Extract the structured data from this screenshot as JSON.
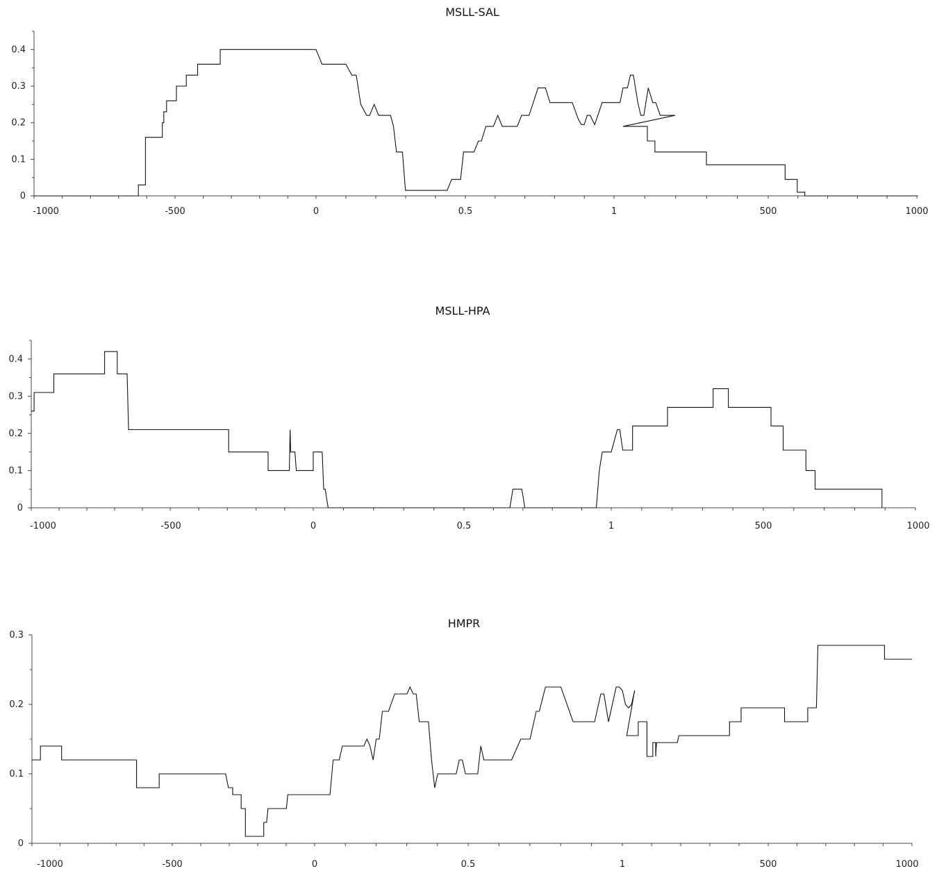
{
  "chart_data": [
    {
      "type": "line",
      "title": "MSLL-SAL",
      "xlabel": "",
      "ylabel": "",
      "ylim": [
        0,
        0.45
      ],
      "yticks": [
        "0",
        "0.1",
        "0.2",
        "0.3",
        "0.4"
      ],
      "xtick_labels": [
        "-1000",
        "-500",
        "0",
        "0.5",
        "1",
        "500",
        "1000"
      ],
      "grid": false,
      "series": [
        {
          "values": [
            [
              -1000,
              0
            ],
            [
              -630,
              0
            ],
            [
              -630,
              0.03
            ],
            [
              -605,
              0.03
            ],
            [
              -605,
              0.16
            ],
            [
              -545,
              0.16
            ],
            [
              -545,
              0.2
            ],
            [
              -540,
              0.2
            ],
            [
              -540,
              0.23
            ],
            [
              -530,
              0.23
            ],
            [
              -530,
              0.26
            ],
            [
              -495,
              0.26
            ],
            [
              -495,
              0.3
            ],
            [
              -460,
              0.3
            ],
            [
              -460,
              0.33
            ],
            [
              -420,
              0.33
            ],
            [
              -420,
              0.36
            ],
            [
              -340,
              0.36
            ],
            [
              -340,
              0.4
            ],
            [
              0,
              0.4
            ],
            [
              0,
              0.4
            ],
            [
              0.02,
              0.36
            ],
            [
              0.1,
              0.36
            ],
            [
              0.12,
              0.33
            ],
            [
              0.135,
              0.33
            ],
            [
              0.15,
              0.25
            ],
            [
              0.17,
              0.22
            ],
            [
              0.18,
              0.22
            ],
            [
              0.195,
              0.25
            ],
            [
              0.21,
              0.22
            ],
            [
              0.25,
              0.22
            ],
            [
              0.26,
              0.19
            ],
            [
              0.27,
              0.12
            ],
            [
              0.29,
              0.12
            ],
            [
              0.3,
              0.015
            ],
            [
              0.44,
              0.015
            ],
            [
              0.455,
              0.045
            ],
            [
              0.485,
              0.045
            ],
            [
              0.495,
              0.12
            ],
            [
              0.53,
              0.12
            ],
            [
              0.545,
              0.15
            ],
            [
              0.555,
              0.15
            ],
            [
              0.57,
              0.19
            ],
            [
              0.595,
              0.19
            ],
            [
              0.61,
              0.22
            ],
            [
              0.625,
              0.19
            ],
            [
              0.675,
              0.19
            ],
            [
              0.69,
              0.22
            ],
            [
              0.715,
              0.22
            ],
            [
              0.745,
              0.295
            ],
            [
              0.77,
              0.295
            ],
            [
              0.785,
              0.255
            ],
            [
              0.86,
              0.255
            ],
            [
              0.88,
              0.21
            ],
            [
              0.89,
              0.195
            ],
            [
              0.9,
              0.195
            ],
            [
              0.91,
              0.22
            ],
            [
              0.92,
              0.22
            ],
            [
              0.935,
              0.195
            ],
            [
              0.95,
              0.23
            ],
            [
              0.96,
              0.255
            ],
            [
              1.0,
              0.255
            ],
            [
              1.02,
              0.255
            ],
            [
              1.03,
              0.295
            ],
            [
              1.045,
              0.295
            ],
            [
              1.055,
              0.33
            ],
            [
              1.065,
              0.33
            ],
            [
              1.08,
              0.255
            ],
            [
              1.09,
              0.22
            ],
            [
              1.1,
              0.22
            ],
            [
              1.115,
              0.295
            ],
            [
              1.13,
              0.255
            ],
            [
              1.14,
              0.255
            ],
            [
              1.155,
              0.22
            ],
            [
              1.205,
              0.22
            ],
            [
              30,
              0.19
            ],
            [
              110,
              0.19
            ],
            [
              110,
              0.15
            ],
            [
              135,
              0.15
            ],
            [
              135,
              0.12
            ],
            [
              305,
              0.12
            ],
            [
              305,
              0.085
            ],
            [
              565,
              0.085
            ],
            [
              565,
              0.045
            ],
            [
              605,
              0.045
            ],
            [
              605,
              0.01
            ],
            [
              630,
              0.01
            ],
            [
              630,
              0
            ],
            [
              1000,
              0
            ]
          ]
        }
      ]
    },
    {
      "type": "line",
      "title": "MSLL-HPA",
      "xlabel": "",
      "ylabel": "",
      "ylim": [
        0,
        0.45
      ],
      "yticks": [
        "0",
        "0.1",
        "0.2",
        "0.3",
        "0.4"
      ],
      "xtick_labels": [
        "-1000",
        "-500",
        "0",
        "0.5",
        "1",
        "500",
        "1000"
      ],
      "grid": false,
      "series": [
        {
          "values": [
            [
              -1000,
              0.26
            ],
            [
              -990,
              0.26
            ],
            [
              -990,
              0.31
            ],
            [
              -920,
              0.31
            ],
            [
              -920,
              0.36
            ],
            [
              -740,
              0.36
            ],
            [
              -740,
              0.42
            ],
            [
              -695,
              0.42
            ],
            [
              -695,
              0.36
            ],
            [
              -660,
              0.36
            ],
            [
              -655,
              0.21
            ],
            [
              -300,
              0.21
            ],
            [
              -300,
              0.15
            ],
            [
              -160,
              0.15
            ],
            [
              -160,
              0.1
            ],
            [
              -85,
              0.1
            ],
            [
              -82,
              0.21
            ],
            [
              -80,
              0.15
            ],
            [
              -65,
              0.15
            ],
            [
              -60,
              0.1
            ],
            [
              0,
              0.1
            ],
            [
              0,
              0.15
            ],
            [
              0.03,
              0.15
            ],
            [
              0.035,
              0.05
            ],
            [
              0.04,
              0.05
            ],
            [
              0.05,
              0
            ],
            [
              0.66,
              0
            ],
            [
              0.67,
              0.05
            ],
            [
              0.7,
              0.05
            ],
            [
              0.71,
              0
            ],
            [
              0.95,
              0
            ],
            [
              0.96,
              0.1
            ],
            [
              0.97,
              0.15
            ],
            [
              0.98,
              0.15
            ],
            [
              1.0,
              0.15
            ],
            [
              20,
              0.21
            ],
            [
              28,
              0.21
            ],
            [
              38,
              0.155
            ],
            [
              70,
              0.155
            ],
            [
              70,
              0.22
            ],
            [
              185,
              0.22
            ],
            [
              185,
              0.27
            ],
            [
              335,
              0.27
            ],
            [
              335,
              0.32
            ],
            [
              385,
              0.32
            ],
            [
              385,
              0.27
            ],
            [
              525,
              0.27
            ],
            [
              525,
              0.22
            ],
            [
              565,
              0.22
            ],
            [
              565,
              0.155
            ],
            [
              640,
              0.155
            ],
            [
              640,
              0.1
            ],
            [
              670,
              0.1
            ],
            [
              670,
              0.05
            ],
            [
              890,
              0.05
            ],
            [
              890,
              0
            ]
          ]
        }
      ]
    },
    {
      "type": "line",
      "title": "HMPR",
      "xlabel": "",
      "ylabel": "",
      "ylim": [
        0,
        0.3
      ],
      "yticks": [
        "0",
        "0.1",
        "0.2",
        "0.3"
      ],
      "xtick_labels": [
        "-1000",
        "-500",
        "0",
        "0.5",
        "1",
        "500",
        "1000"
      ],
      "grid": false,
      "series": [
        {
          "values": [
            [
              -1000,
              0.12
            ],
            [
              -970,
              0.12
            ],
            [
              -970,
              0.14
            ],
            [
              -895,
              0.14
            ],
            [
              -895,
              0.12
            ],
            [
              -630,
              0.12
            ],
            [
              -630,
              0.08
            ],
            [
              -550,
              0.08
            ],
            [
              -550,
              0.1
            ],
            [
              -315,
              0.1
            ],
            [
              -305,
              0.08
            ],
            [
              -290,
              0.08
            ],
            [
              -290,
              0.07
            ],
            [
              -260,
              0.07
            ],
            [
              -260,
              0.05
            ],
            [
              -245,
              0.05
            ],
            [
              -245,
              0.01
            ],
            [
              -180,
              0.01
            ],
            [
              -180,
              0.03
            ],
            [
              -170,
              0.03
            ],
            [
              -165,
              0.05
            ],
            [
              -100,
              0.05
            ],
            [
              -95,
              0.07
            ],
            [
              0,
              0.07
            ],
            [
              0.05,
              0.07
            ],
            [
              0.06,
              0.12
            ],
            [
              0.08,
              0.12
            ],
            [
              0.09,
              0.14
            ],
            [
              0.16,
              0.14
            ],
            [
              0.17,
              0.15
            ],
            [
              0.18,
              0.14
            ],
            [
              0.19,
              0.12
            ],
            [
              0.2,
              0.15
            ],
            [
              0.21,
              0.15
            ],
            [
              0.22,
              0.19
            ],
            [
              0.24,
              0.19
            ],
            [
              0.26,
              0.215
            ],
            [
              0.3,
              0.215
            ],
            [
              0.31,
              0.225
            ],
            [
              0.32,
              0.215
            ],
            [
              0.33,
              0.215
            ],
            [
              0.34,
              0.175
            ],
            [
              0.37,
              0.175
            ],
            [
              0.38,
              0.12
            ],
            [
              0.39,
              0.08
            ],
            [
              0.4,
              0.1
            ],
            [
              0.46,
              0.1
            ],
            [
              0.47,
              0.12
            ],
            [
              0.48,
              0.12
            ],
            [
              0.49,
              0.1
            ],
            [
              0.53,
              0.1
            ],
            [
              0.54,
              0.14
            ],
            [
              0.55,
              0.12
            ],
            [
              0.64,
              0.12
            ],
            [
              0.66,
              0.14
            ],
            [
              0.67,
              0.15
            ],
            [
              0.7,
              0.15
            ],
            [
              0.72,
              0.19
            ],
            [
              0.73,
              0.19
            ],
            [
              0.75,
              0.225
            ],
            [
              0.8,
              0.225
            ],
            [
              0.82,
              0.2
            ],
            [
              0.84,
              0.175
            ],
            [
              0.91,
              0.175
            ],
            [
              0.93,
              0.215
            ],
            [
              0.94,
              0.215
            ],
            [
              0.955,
              0.175
            ],
            [
              0.98,
              0.225
            ],
            [
              0.99,
              0.225
            ],
            [
              1.0,
              0.22
            ],
            [
              1.01,
              0.2
            ],
            [
              1.02,
              0.195
            ],
            [
              1.03,
              0.2
            ],
            [
              1.04,
              0.22
            ],
            [
              15,
              0.155
            ],
            [
              55,
              0.155
            ],
            [
              55,
              0.175
            ],
            [
              85,
              0.175
            ],
            [
              85,
              0.125
            ],
            [
              105,
              0.125
            ],
            [
              105,
              0.145
            ],
            [
              115,
              0.145
            ],
            [
              115,
              0.125
            ],
            [
              118,
              0.145
            ],
            [
              190,
              0.145
            ],
            [
              195,
              0.155
            ],
            [
              370,
              0.155
            ],
            [
              370,
              0.175
            ],
            [
              410,
              0.175
            ],
            [
              410,
              0.195
            ],
            [
              560,
              0.195
            ],
            [
              560,
              0.175
            ],
            [
              640,
              0.175
            ],
            [
              640,
              0.195
            ],
            [
              670,
              0.195
            ],
            [
              675,
              0.285
            ],
            [
              905,
              0.285
            ],
            [
              905,
              0.265
            ],
            [
              1000,
              0.265
            ]
          ]
        }
      ]
    }
  ]
}
